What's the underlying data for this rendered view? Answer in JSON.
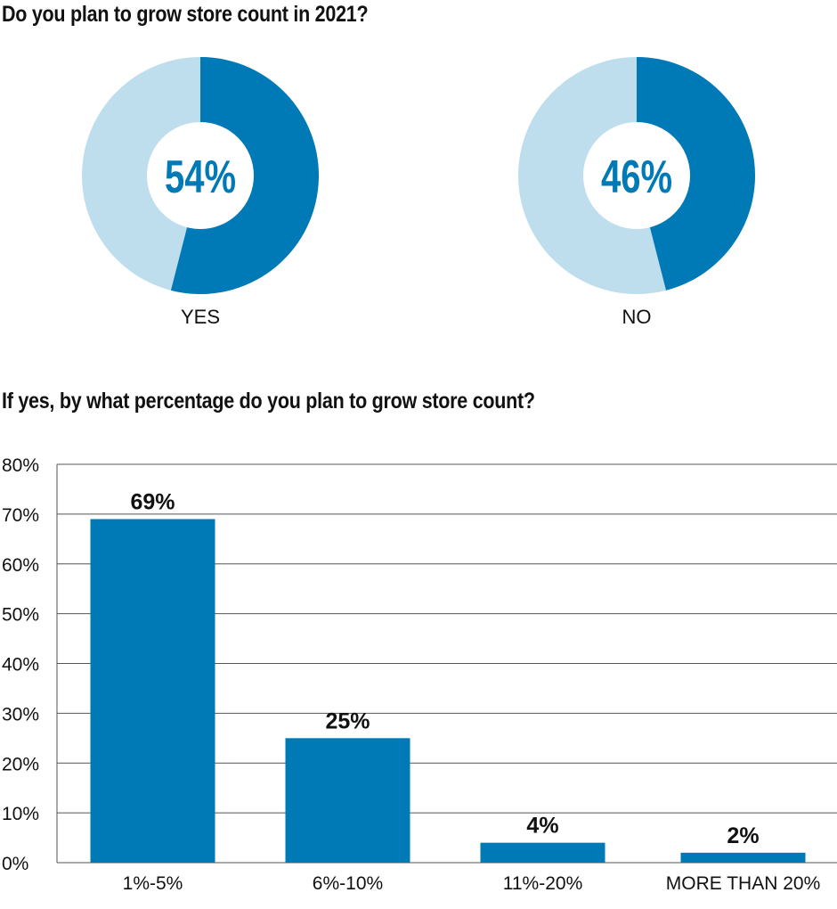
{
  "colors": {
    "dark": "#0079b7",
    "light": "#bfdeed",
    "grid": "#555555"
  },
  "chart_data": [
    {
      "type": "pie",
      "title": "Do you plan to grow store count in 2021?",
      "charts": [
        {
          "label": "YES",
          "value": 54,
          "display": "54%"
        },
        {
          "label": "NO",
          "value": 46,
          "display": "46%"
        }
      ]
    },
    {
      "type": "bar",
      "title": "If yes, by what percentage do you plan to grow store count?",
      "categories": [
        "1%-5%",
        "6%-10%",
        "11%-20%",
        "MORE THAN 20%"
      ],
      "values": [
        69,
        25,
        4,
        2
      ],
      "value_labels": [
        "69%",
        "25%",
        "4%",
        "2%"
      ],
      "ylim": [
        0,
        80
      ],
      "yticks": [
        "0%",
        "10%",
        "20%",
        "30%",
        "40%",
        "50%",
        "60%",
        "70%",
        "80%"
      ],
      "grid": true
    }
  ]
}
